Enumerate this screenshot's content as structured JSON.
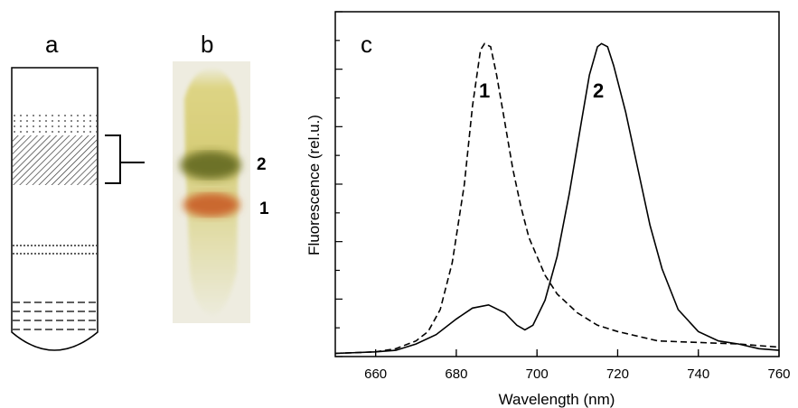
{
  "panels": {
    "a": "a",
    "b": "b",
    "c": "c"
  },
  "gel_labels": {
    "band_upper": "2",
    "band_lower": "1"
  },
  "gel_colors": {
    "strip": "#e2dcb0",
    "upper_band": "#4f5a1c",
    "lower_band": "#c0441c",
    "smear": "#cdc46a"
  },
  "chart_data": {
    "type": "line",
    "xlabel": "Wavelength (nm)",
    "ylabel": "Fluorescence (rel.u.)",
    "xlim": [
      650,
      760
    ],
    "ylim": [
      0,
      1.05
    ],
    "x_ticks": [
      660,
      680,
      700,
      720,
      740,
      760
    ],
    "y_tick_count": 12,
    "grid": false,
    "series": [
      {
        "name": "1",
        "style": "dashed",
        "points": [
          [
            650,
            0.01
          ],
          [
            660,
            0.015
          ],
          [
            665,
            0.025
          ],
          [
            670,
            0.05
          ],
          [
            673,
            0.08
          ],
          [
            676,
            0.15
          ],
          [
            679,
            0.3
          ],
          [
            682,
            0.55
          ],
          [
            684,
            0.8
          ],
          [
            686,
            0.98
          ],
          [
            687,
            1.0
          ],
          [
            688.5,
            0.99
          ],
          [
            690,
            0.9
          ],
          [
            692,
            0.75
          ],
          [
            694,
            0.6
          ],
          [
            696,
            0.48
          ],
          [
            698,
            0.38
          ],
          [
            700,
            0.32
          ],
          [
            702,
            0.26
          ],
          [
            705,
            0.2
          ],
          [
            710,
            0.14
          ],
          [
            715,
            0.1
          ],
          [
            720,
            0.08
          ],
          [
            730,
            0.05
          ],
          [
            740,
            0.045
          ],
          [
            750,
            0.04
          ],
          [
            755,
            0.035
          ],
          [
            760,
            0.03
          ]
        ]
      },
      {
        "name": "2",
        "style": "solid",
        "points": [
          [
            650,
            0.01
          ],
          [
            660,
            0.015
          ],
          [
            665,
            0.02
          ],
          [
            670,
            0.04
          ],
          [
            675,
            0.07
          ],
          [
            680,
            0.12
          ],
          [
            684,
            0.155
          ],
          [
            688,
            0.165
          ],
          [
            692,
            0.14
          ],
          [
            695,
            0.1
          ],
          [
            697,
            0.085
          ],
          [
            699,
            0.1
          ],
          [
            702,
            0.18
          ],
          [
            705,
            0.32
          ],
          [
            708,
            0.52
          ],
          [
            711,
            0.75
          ],
          [
            713,
            0.9
          ],
          [
            715,
            0.99
          ],
          [
            716,
            1.0
          ],
          [
            717.5,
            0.99
          ],
          [
            719,
            0.93
          ],
          [
            722,
            0.78
          ],
          [
            725,
            0.6
          ],
          [
            728,
            0.42
          ],
          [
            731,
            0.28
          ],
          [
            735,
            0.15
          ],
          [
            740,
            0.08
          ],
          [
            745,
            0.05
          ],
          [
            750,
            0.04
          ],
          [
            755,
            0.025
          ],
          [
            760,
            0.02
          ]
        ]
      }
    ],
    "curve_labels": [
      "1",
      "2"
    ]
  }
}
